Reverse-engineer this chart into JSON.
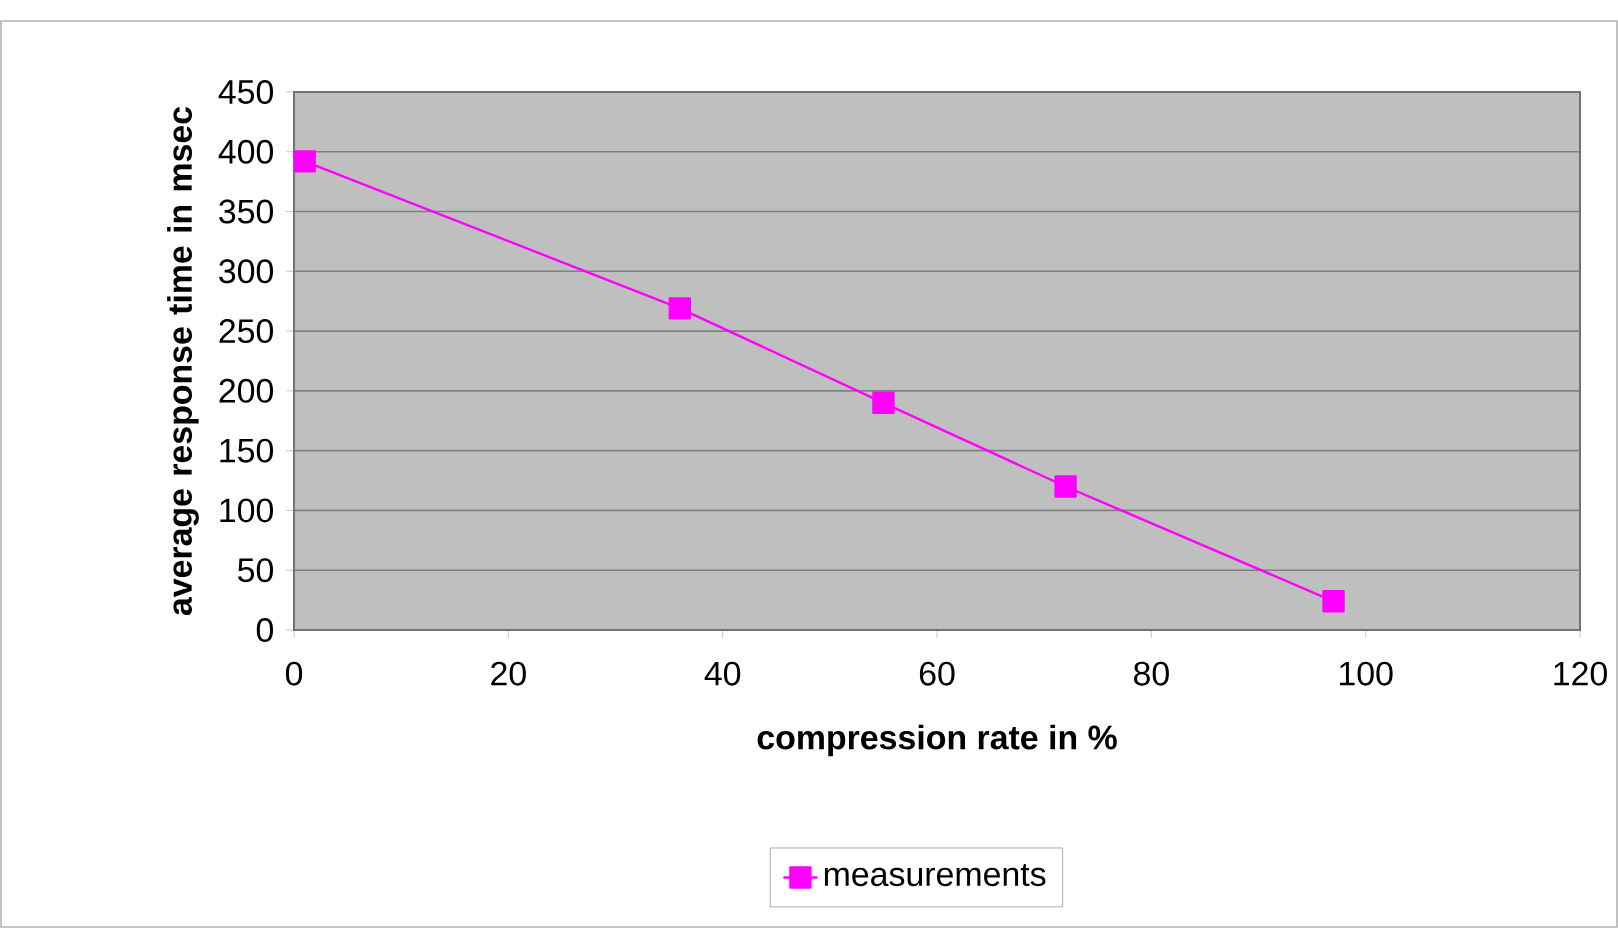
{
  "chart_data": {
    "type": "line",
    "xlabel": "compression rate in %",
    "ylabel": "average response time in msec",
    "x": [
      1,
      36,
      55,
      72,
      97
    ],
    "series": [
      {
        "name": "measurements",
        "color": "#ff00ff",
        "values": [
          392,
          269,
          190,
          120,
          24
        ]
      }
    ],
    "xlim": [
      0,
      120
    ],
    "xticks": [
      0,
      20,
      40,
      60,
      80,
      100,
      120
    ],
    "ylim": [
      0,
      450
    ],
    "yticks": [
      0,
      50,
      100,
      150,
      200,
      250,
      300,
      350,
      400,
      450
    ],
    "grid": "y",
    "legend": "bottom",
    "marker": "square",
    "line_style": "solid"
  }
}
